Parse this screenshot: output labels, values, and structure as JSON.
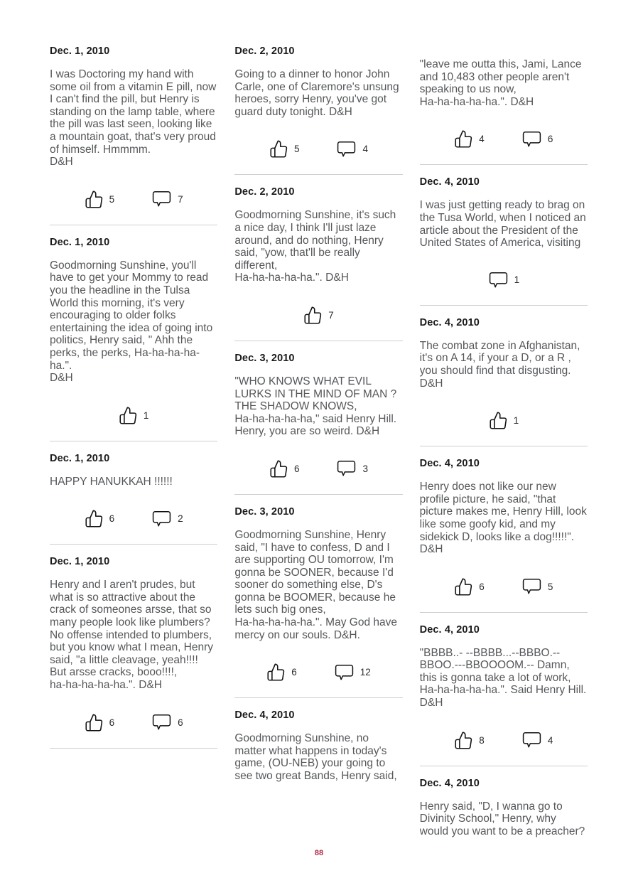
{
  "page": {
    "number": "88",
    "accent_color": "#aa2b4a",
    "divider_color": "#cfcfcf",
    "heading_color": "#1a1a1a",
    "body_color": "#55575a"
  },
  "icons": {
    "like": "thumbs-up-icon",
    "comment": "comment-bubble-icon"
  },
  "columns": [
    {
      "posts": [
        {
          "date": "Dec. 1, 2010",
          "body": "I was Doctoring my hand with some oil from a vitamin E pill, now I can't find the pill, but Henry is standing on the lamp table, where the pill was last seen, looking like a mountain goat, that's very proud of himself. Hmmmm.\nD&H",
          "likes": 5,
          "comments": 7,
          "truncated": false
        },
        {
          "date": "Dec. 1, 2010",
          "body": "Goodmorning Sunshine, you'll have to get your Mommy to read you the headline in the Tulsa World this morning, it's very encouraging to older folks entertaining the idea of going into politics, Henry said, \" Ahh the perks, the perks, Ha-ha-ha-ha-ha.\".\nD&H",
          "likes": 1,
          "comments": null,
          "truncated": false
        },
        {
          "date": "Dec. 1, 2010",
          "body": "HAPPY HANUKKAH !!!!!!",
          "likes": 6,
          "comments": 2,
          "truncated": false
        },
        {
          "date": "Dec. 1, 2010",
          "body": "Henry and I aren't prudes, but what is so attractive about the crack of someones arsse, that so many people look like plumbers? No offense intended to plumbers, but you know what I mean, Henry said, \"a little cleavage, yeah!!!! But arsse cracks, booo!!!!,\nha-ha-ha-ha-ha.\". D&H",
          "likes": 6,
          "comments": 6,
          "truncated": false
        }
      ]
    },
    {
      "posts": [
        {
          "date": "Dec. 2, 2010",
          "body": "Going to a dinner to honor John Carle, one of Claremore's unsung heroes, sorry Henry, you've got guard duty tonight. D&H",
          "likes": 5,
          "comments": 4,
          "truncated": false
        },
        {
          "date": "Dec. 2, 2010",
          "body": "Goodmorning Sunshine, it's such a nice day, I think I'll just laze around, and do nothing, Henry said, \"yow, that'll be really different,\nHa-ha-ha-ha-ha.\". D&H",
          "likes": 7,
          "comments": null,
          "truncated": false
        },
        {
          "date": "Dec. 3, 2010",
          "body": "\"WHO KNOWS WHAT EVIL LURKS IN THE MIND OF MAN ? THE SHADOW KNOWS,\nHa-ha-ha-ha-ha,\" said Henry Hill. Henry, you are so weird. D&H",
          "likes": 6,
          "comments": 3,
          "truncated": false
        },
        {
          "date": "Dec. 3, 2010",
          "body": "Goodmorning Sunshine, Henry said, \"I have to confess, D and I are supporting OU tomorrow, I'm gonna be SOONER, because I'd sooner do something else, D's gonna be BOOMER, because he lets such big ones,\nHa-ha-ha-ha-ha.\". May God have mercy on our souls. D&H.",
          "likes": 6,
          "comments": 12,
          "truncated": false
        },
        {
          "date": "Dec. 4, 2010",
          "body": "Goodmorning Sunshine, no matter what happens in today's game, (OU-NEB) your going to see two great Bands, Henry said,",
          "likes": null,
          "comments": null,
          "truncated": true
        }
      ]
    },
    {
      "posts": [
        {
          "date": null,
          "body": "\"leave me outta this, Jami, Lance and 10,483 other people aren't speaking to us now,\nHa-ha-ha-ha-ha.\". D&H",
          "likes": 4,
          "comments": 6,
          "truncated": false
        },
        {
          "date": "Dec. 4, 2010",
          "body": "I was just getting ready to brag on the Tusa World, when I noticed an article about the President of the United States of America, visiting",
          "likes": null,
          "comments": 1,
          "truncated": false
        },
        {
          "date": "Dec. 4, 2010",
          "body": "The combat zone in Afghanistan, it's on A 14, if your a D, or a R , you should find that disgusting. D&H",
          "likes": 1,
          "comments": null,
          "truncated": false
        },
        {
          "date": "Dec. 4, 2010",
          "body": "Henry does not like our new profile picture, he said, \"that picture makes me, Henry Hill, look like some goofy kid, and my sidekick D, looks like a dog!!!!!\". D&H",
          "likes": 6,
          "comments": 5,
          "truncated": false
        },
        {
          "date": "Dec. 4, 2010",
          "body": "\"BBBB..- --BBBB...--BBBO.--BBOO.---BBOOOOM.-- Damn, this is gonna take a lot of work,\nHa-ha-ha-ha-ha.\". Said Henry Hill.\nD&H",
          "likes": 8,
          "comments": 4,
          "truncated": false
        },
        {
          "date": "Dec. 4, 2010",
          "body": "Henry said, \"D, I wanna go to Divinity School,\" Henry, why would you want to be a preacher?",
          "likes": null,
          "comments": null,
          "truncated": true
        }
      ]
    }
  ]
}
